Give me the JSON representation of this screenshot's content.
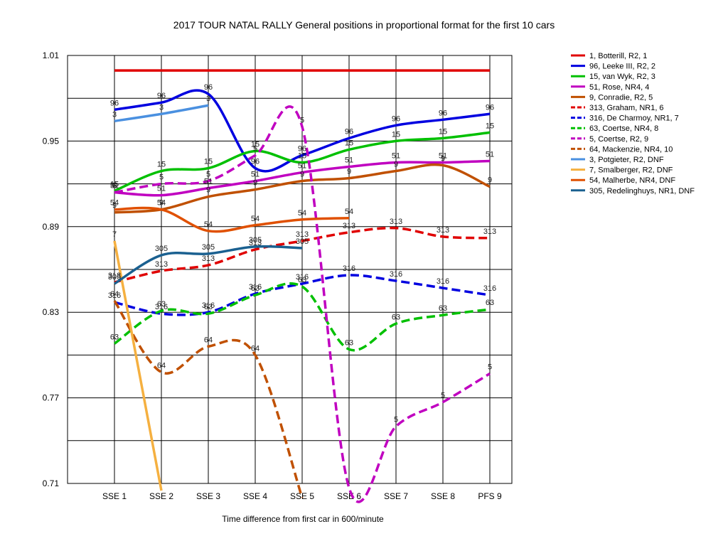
{
  "chart_data": {
    "type": "line",
    "title": "2017 TOUR NATAL RALLY  General positions in proportional format for the first 10 cars",
    "xlabel": "Time difference from first car in 600/minute",
    "ylabel": "",
    "categories": [
      "SSE 1",
      "SSE 2",
      "SSE 3",
      "SSE 4",
      "SSE 5",
      "SSE 6",
      "SSE 7",
      "SSE 8",
      "PFS 9"
    ],
    "ylim": [
      0.71,
      1.01
    ],
    "yticks": [
      0.71,
      0.77,
      0.83,
      0.89,
      0.95,
      1.01
    ],
    "ytick_labels": [
      "0.71",
      "0.77",
      "0.83",
      "0.89",
      "0.95",
      "1.01"
    ],
    "legend_position": "right",
    "grid": "horizontal and vertical",
    "series": [
      {
        "name": "1, Botterill, R2, 1",
        "label": "",
        "color": "#e00000",
        "dashed": false,
        "values": [
          0.9995,
          0.9995,
          0.9995,
          0.9995,
          0.9995,
          0.9995,
          0.9995,
          0.9995,
          0.9995
        ]
      },
      {
        "name": "96, Leeke III, R2, 2",
        "label": "96",
        "color": "#0000e0",
        "dashed": false,
        "values": [
          0.972,
          0.977,
          0.983,
          0.931,
          0.94,
          0.952,
          0.961,
          0.965,
          0.969
        ]
      },
      {
        "name": "15, van Wyk, R2, 3",
        "label": "15",
        "color": "#00c000",
        "dashed": false,
        "values": [
          0.915,
          0.929,
          0.931,
          0.943,
          0.935,
          0.944,
          0.95,
          0.952,
          0.956
        ]
      },
      {
        "name": "51, Rose, NR4, 4",
        "label": "51",
        "color": "#c000c0",
        "dashed": false,
        "values": [
          0.914,
          0.912,
          0.917,
          0.922,
          0.928,
          0.932,
          0.935,
          0.935,
          0.936
        ]
      },
      {
        "name": "9, Conradie, R2, 5",
        "label": "9",
        "color": "#c05000",
        "dashed": false,
        "values": [
          0.9,
          0.902,
          0.911,
          0.916,
          0.922,
          0.924,
          0.929,
          0.933,
          0.918
        ]
      },
      {
        "name": "313, Graham, NR1, 6",
        "label": "313",
        "color": "#e00000",
        "dashed": true,
        "values": [
          0.851,
          0.859,
          0.863,
          0.874,
          0.88,
          0.886,
          0.889,
          0.883,
          0.882
        ]
      },
      {
        "name": "316, De Charmoy, NR1, 7",
        "label": "316",
        "color": "#0000e0",
        "dashed": true,
        "values": [
          0.837,
          0.829,
          0.83,
          0.843,
          0.85,
          0.856,
          0.852,
          0.847,
          0.842
        ]
      },
      {
        "name": "63, Coertse, NR4, 8",
        "label": "63",
        "color": "#00c000",
        "dashed": true,
        "values": [
          0.808,
          0.831,
          0.829,
          0.842,
          0.848,
          0.804,
          0.822,
          0.828,
          0.832
        ]
      },
      {
        "name": "5, Coertse, R2, 9",
        "label": "5",
        "color": "#c000c0",
        "dashed": true,
        "values": [
          0.914,
          0.92,
          0.922,
          0.94,
          0.96,
          0.707,
          0.75,
          0.767,
          0.787
        ]
      },
      {
        "name": "64, Mackenzie, NR4, 10",
        "label": "64",
        "color": "#c05000",
        "dashed": true,
        "values": [
          0.838,
          0.788,
          0.806,
          0.8,
          0.7,
          null,
          null,
          null,
          null
        ]
      },
      {
        "name": "3, Potgieter, R2, DNF",
        "label": "3",
        "color": "#4a90e0",
        "dashed": false,
        "values": [
          0.964,
          0.969,
          0.975,
          null,
          null,
          null,
          null,
          null,
          null
        ]
      },
      {
        "name": "7, Smalberger, R2, DNF",
        "label": "7",
        "color": "#f5b040",
        "dashed": false,
        "values": [
          0.88,
          0.705,
          null,
          null,
          null,
          null,
          null,
          null,
          null
        ]
      },
      {
        "name": "54, Malherbe, NR4, DNF",
        "label": "54",
        "color": "#e05000",
        "dashed": false,
        "values": [
          0.902,
          0.902,
          0.887,
          0.891,
          0.895,
          0.896,
          null,
          null,
          null
        ]
      },
      {
        "name": "305, Redelinghuys, NR1, DNF",
        "label": "305",
        "color": "#1a6090",
        "dashed": false,
        "values": [
          0.85,
          0.87,
          0.871,
          0.876,
          0.875,
          null,
          null,
          null,
          null
        ]
      }
    ]
  }
}
